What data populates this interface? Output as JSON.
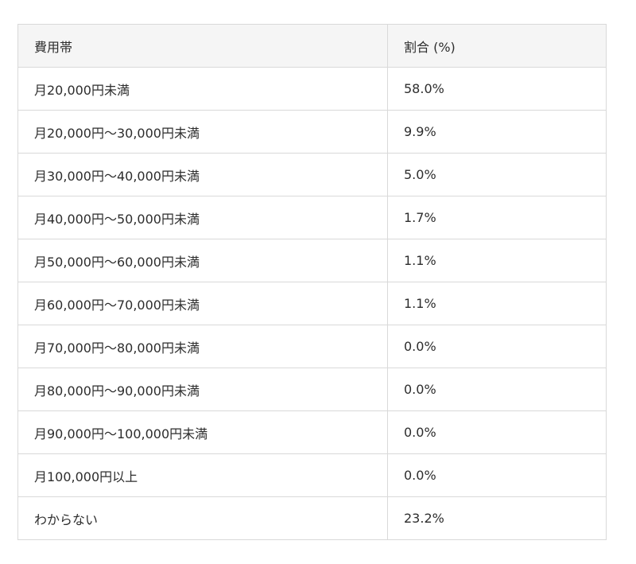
{
  "page": {
    "background_color": "#ffffff"
  },
  "table": {
    "name": "monthly-cost-share-table",
    "style": {
      "header_background": "#f5f5f5",
      "border_color": "#d9d9d9",
      "text_color": "#2d2d2d"
    },
    "columns": [
      {
        "label": "費用帯"
      },
      {
        "label": "割合 (%)"
      }
    ],
    "rows": [
      {
        "band": "月20,000円未満",
        "pct": "58.0%"
      },
      {
        "band": "月20,000円〜30,000円未満",
        "pct": "9.9%"
      },
      {
        "band": "月30,000円〜40,000円未満",
        "pct": "5.0%"
      },
      {
        "band": "月40,000円〜50,000円未満",
        "pct": "1.7%"
      },
      {
        "band": "月50,000円〜60,000円未満",
        "pct": "1.1%"
      },
      {
        "band": "月60,000円〜70,000円未満",
        "pct": "1.1%"
      },
      {
        "band": "月70,000円〜80,000円未満",
        "pct": "0.0%"
      },
      {
        "band": "月80,000円〜90,000円未満",
        "pct": "0.0%"
      },
      {
        "band": "月90,000円〜100,000円未満",
        "pct": "0.0%"
      },
      {
        "band": "月100,000円以上",
        "pct": "0.0%"
      },
      {
        "band": "わからない",
        "pct": "23.2%"
      }
    ]
  },
  "chart_data": {
    "type": "table",
    "title": "",
    "columns": [
      "費用帯",
      "割合 (%)"
    ],
    "categories": [
      "月20,000円未満",
      "月20,000円〜30,000円未満",
      "月30,000円〜40,000円未満",
      "月40,000円〜50,000円未満",
      "月50,000円〜60,000円未満",
      "月60,000円〜70,000円未満",
      "月70,000円〜80,000円未満",
      "月80,000円〜90,000円未満",
      "月90,000円〜100,000円未満",
      "月100,000円以上",
      "わからない"
    ],
    "values": [
      58.0,
      9.9,
      5.0,
      1.7,
      1.1,
      1.1,
      0.0,
      0.0,
      0.0,
      0.0,
      23.2
    ],
    "value_unit": "%"
  }
}
